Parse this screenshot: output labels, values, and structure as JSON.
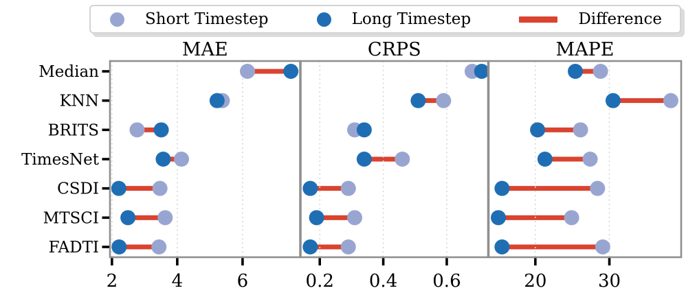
{
  "legend": {
    "items": [
      {
        "label": "Short Timestep",
        "marker": "dot",
        "color": "#99a5d1"
      },
      {
        "label": "Long Timestep",
        "marker": "dot",
        "color": "#1f6eb4"
      },
      {
        "label": "Difference",
        "marker": "line",
        "color": "#d9432f"
      }
    ]
  },
  "chart_data": {
    "type": "dumbbell",
    "legend_position": "top",
    "grid": true,
    "categories": [
      "Median",
      "KNN",
      "BRITS",
      "TimesNet",
      "CSDI",
      "MTSCI",
      "FADTI"
    ],
    "series_names": [
      "Short Timestep",
      "Long Timestep",
      "Difference"
    ],
    "colors": {
      "short": "#99a5d1",
      "long": "#1f6eb4",
      "difference": "#d9432f",
      "panel_border": "#8f8f8f",
      "gridline": "#d9d9d9",
      "tick": "#000000"
    },
    "panels": [
      {
        "title": "MAE",
        "xlim": [
          1.94,
          7.76
        ],
        "tick_values": [
          2,
          4,
          6
        ],
        "tick_labels": [
          "2",
          "4",
          "6"
        ],
        "short": [
          6.15,
          5.38,
          2.77,
          4.13,
          3.47,
          3.63,
          3.44
        ],
        "long": [
          7.48,
          5.22,
          3.51,
          3.57,
          2.21,
          2.49,
          2.22
        ]
      },
      {
        "title": "CRPS",
        "xlim": [
          0.14,
          0.73
        ],
        "tick_values": [
          0.2,
          0.4,
          0.6
        ],
        "tick_labels": [
          "0.2",
          "0.4",
          "0.6"
        ],
        "short": [
          0.68,
          0.59,
          0.31,
          0.46,
          0.29,
          0.31,
          0.29
        ],
        "long": [
          0.71,
          0.51,
          0.34,
          0.34,
          0.17,
          0.19,
          0.17
        ]
      },
      {
        "title": "MAPE",
        "xlim": [
          13.7,
          39.7
        ],
        "tick_values": [
          20,
          30
        ],
        "tick_labels": [
          "20",
          "30"
        ],
        "short": [
          28.8,
          38.3,
          26.1,
          27.4,
          28.4,
          24.9,
          29.1
        ],
        "long": [
          25.4,
          30.5,
          20.3,
          21.3,
          15.5,
          15.0,
          15.5
        ]
      }
    ]
  }
}
